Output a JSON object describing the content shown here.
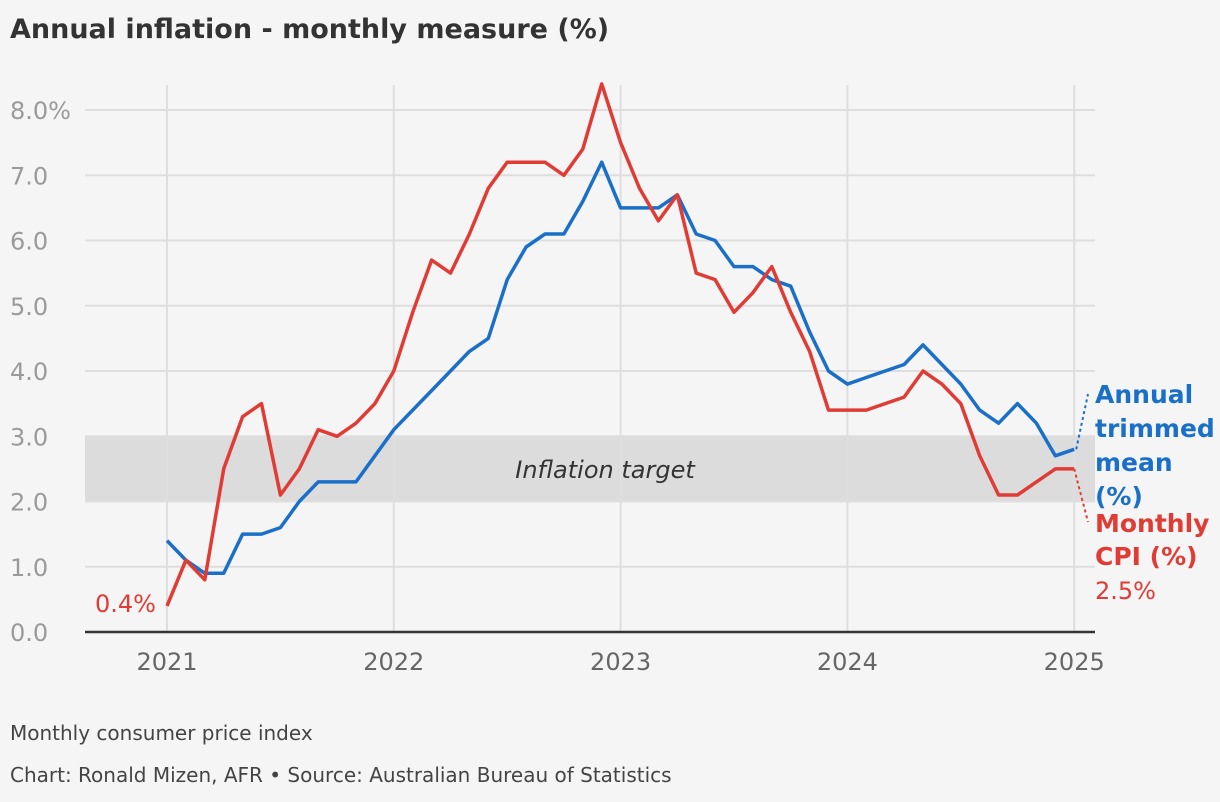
{
  "chart_data": {
    "type": "line",
    "title": "Annual inflation - monthly measure (%)",
    "subtitle_footer": "Monthly consumer price index",
    "source": "Chart: Ronald Mizen, AFR • Source: Australian Bureau of Statistics",
    "x_start": "2021-01",
    "x_ticks": [
      "2021",
      "2022",
      "2023",
      "2024",
      "2025"
    ],
    "y_ticks": [
      {
        "value": 0,
        "label": "0.0"
      },
      {
        "value": 1,
        "label": "1.0"
      },
      {
        "value": 2,
        "label": "2.0"
      },
      {
        "value": 3,
        "label": "3.0"
      },
      {
        "value": 4,
        "label": "4.0"
      },
      {
        "value": 5,
        "label": "5.0"
      },
      {
        "value": 6,
        "label": "6.0"
      },
      {
        "value": 7,
        "label": "7.0"
      },
      {
        "value": 8,
        "label": "8.0%"
      }
    ],
    "ylim": [
      0,
      8.4
    ],
    "xlim": [
      "2020-09",
      "2025-02"
    ],
    "grid": true,
    "band": {
      "from": 2,
      "to": 3,
      "label": "Inflation target",
      "color": "#dcdcdc"
    },
    "series": [
      {
        "name": "Annual trimmed mean (%)",
        "label_lines": [
          "Annual",
          "trimmed",
          "mean",
          "(%)"
        ],
        "color": "#1a6fc9",
        "values": [
          1.4,
          1.1,
          0.9,
          0.9,
          1.5,
          1.5,
          1.6,
          2.0,
          2.3,
          2.3,
          2.3,
          2.7,
          3.1,
          3.4,
          3.7,
          4.0,
          4.3,
          4.5,
          5.4,
          5.9,
          6.1,
          6.1,
          6.6,
          7.2,
          6.5,
          6.5,
          6.5,
          6.7,
          6.1,
          6.0,
          5.6,
          5.6,
          5.4,
          5.3,
          4.6,
          4.0,
          3.8,
          3.9,
          4.0,
          4.1,
          4.4,
          4.1,
          3.8,
          3.4,
          3.2,
          3.5,
          3.2,
          2.7,
          2.8
        ]
      },
      {
        "name": "Monthly CPI (%)",
        "label_lines": [
          "Monthly",
          "CPI (%)"
        ],
        "end_label": "2.5%",
        "start_label": "0.4%",
        "color": "#e03c35",
        "values": [
          0.4,
          1.1,
          0.8,
          2.5,
          3.3,
          3.5,
          2.1,
          2.5,
          3.1,
          3.0,
          3.2,
          3.5,
          4.0,
          4.9,
          5.7,
          5.5,
          6.1,
          6.8,
          7.2,
          7.2,
          7.2,
          7.0,
          7.4,
          8.4,
          7.5,
          6.8,
          6.3,
          6.7,
          5.5,
          5.4,
          4.9,
          5.2,
          5.6,
          4.9,
          4.3,
          3.4,
          3.4,
          3.4,
          3.5,
          3.6,
          4.0,
          3.8,
          3.5,
          2.7,
          2.1,
          2.1,
          2.3,
          2.5,
          2.5
        ]
      }
    ]
  }
}
